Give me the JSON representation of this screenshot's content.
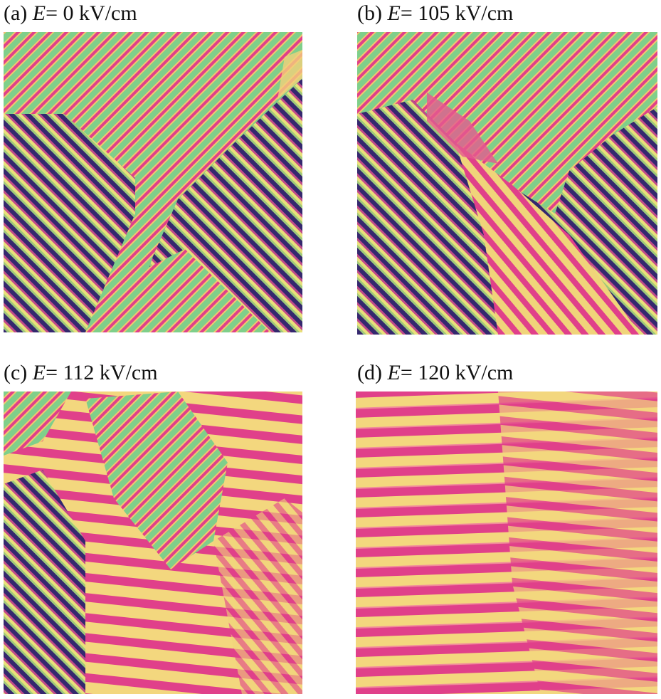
{
  "panels": [
    {
      "tag": "(a)",
      "symbol": "E",
      "rest": "= 0 kV/cm"
    },
    {
      "tag": "(b)",
      "symbol": "E",
      "rest": "= 105 kV/cm"
    },
    {
      "tag": "(c)",
      "symbol": "E",
      "rest": "= 112 kV/cm"
    },
    {
      "tag": "(d)",
      "symbol": "E",
      "rest": "= 120 kV/cm"
    }
  ]
}
